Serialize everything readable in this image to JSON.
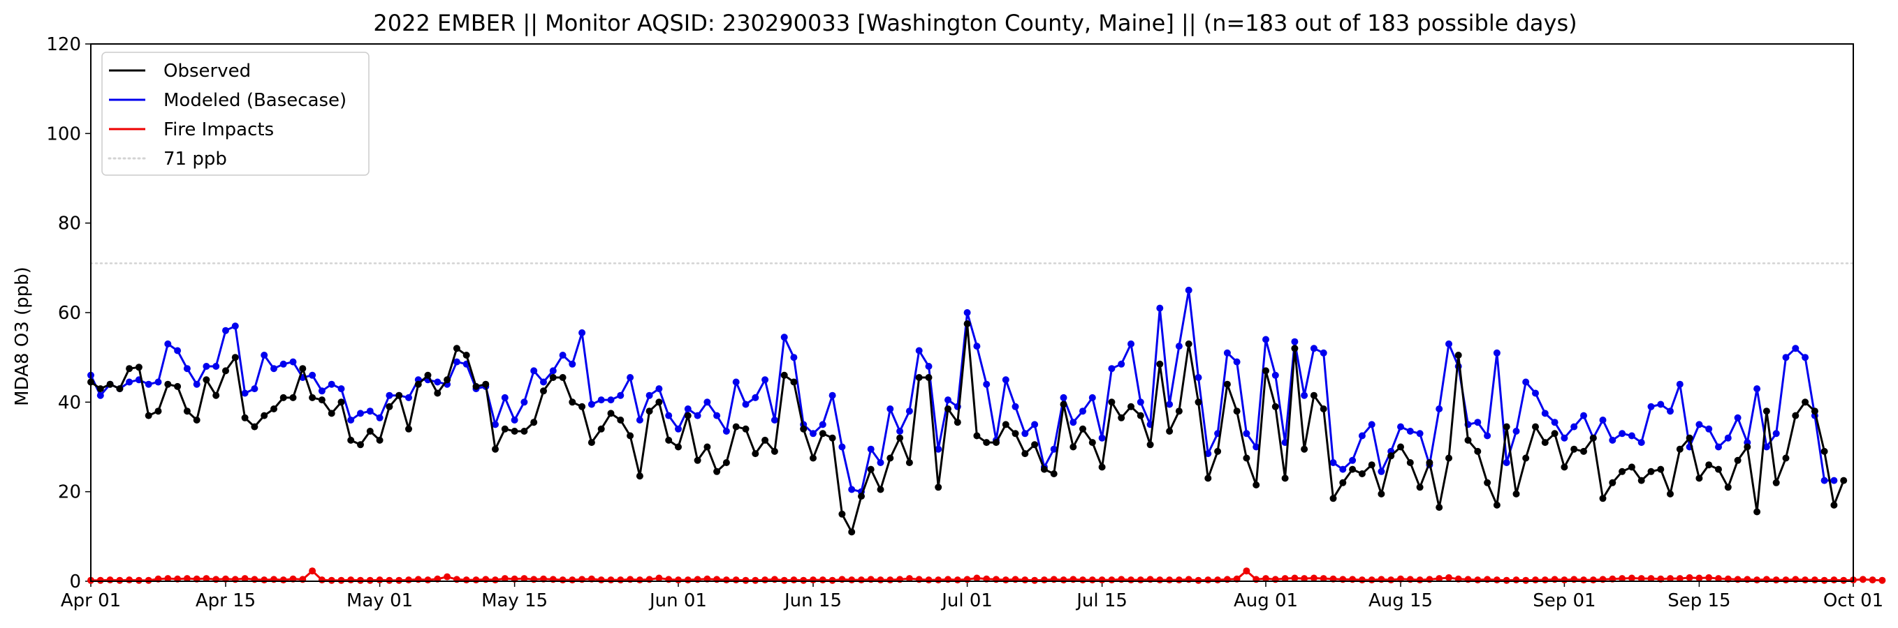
{
  "chart_data": {
    "type": "line",
    "title": "2022 EMBER || Monitor AQSID: 230290033 [Washington County, Maine] || (n=183 out of 183 possible days)",
    "xlabel": "",
    "ylabel": "MDA8 O3 (ppb)",
    "xlim": [
      "2022-04-01",
      "2022-10-01"
    ],
    "ylim": [
      0,
      120
    ],
    "x_ticks": [
      {
        "date": "2022-04-01",
        "label": "Apr 01"
      },
      {
        "date": "2022-04-15",
        "label": "Apr 15"
      },
      {
        "date": "2022-05-01",
        "label": "May 01"
      },
      {
        "date": "2022-05-15",
        "label": "May 15"
      },
      {
        "date": "2022-06-01",
        "label": "Jun 01"
      },
      {
        "date": "2022-06-15",
        "label": "Jun 15"
      },
      {
        "date": "2022-07-01",
        "label": "Jul 01"
      },
      {
        "date": "2022-07-15",
        "label": "Jul 15"
      },
      {
        "date": "2022-08-01",
        "label": "Aug 01"
      },
      {
        "date": "2022-08-15",
        "label": "Aug 15"
      },
      {
        "date": "2022-09-01",
        "label": "Sep 01"
      },
      {
        "date": "2022-09-15",
        "label": "Sep 15"
      },
      {
        "date": "2022-10-01",
        "label": "Oct 01"
      }
    ],
    "y_ticks": [
      0,
      20,
      40,
      60,
      80,
      100,
      120
    ],
    "x_start": "2022-04-01",
    "x_step": "1 day",
    "grid": false,
    "legend": {
      "placement": "top-left"
    },
    "reference_line": {
      "value": 71,
      "label": "71 ppb",
      "color": "#d3d3d3",
      "style": "dotted"
    },
    "series": [
      {
        "name": "Observed",
        "color": "#000000",
        "marker": "circle",
        "values": [
          44.5,
          43,
          44,
          43,
          47.5,
          47.8,
          37,
          38,
          44,
          43.5,
          38,
          36,
          45,
          41.5,
          47,
          50,
          36.5,
          34.5,
          37,
          38.5,
          41,
          41,
          47.5,
          41,
          40.5,
          37.5,
          40,
          31.5,
          30.5,
          33.5,
          31.5,
          39,
          41.5,
          34,
          44,
          46,
          42,
          45,
          52,
          50.5,
          43.5,
          44,
          29.5,
          34,
          33.5,
          33.5,
          35.5,
          42.5,
          45.5,
          45.5,
          40,
          39,
          31,
          34,
          37.5,
          36,
          32.5,
          23.5,
          38,
          40,
          31.5,
          30,
          37,
          27,
          30,
          24.5,
          26.5,
          34.5,
          34,
          28.5,
          31.5,
          29,
          46,
          44.5,
          34,
          27.5,
          33,
          32,
          15,
          11,
          19,
          25,
          20.5,
          27.5,
          32,
          26.5,
          45.5,
          45.5,
          21,
          38.5,
          35.5,
          57.5,
          32.5,
          31,
          31,
          35,
          33,
          28.5,
          30.5,
          25,
          24,
          39.5,
          30,
          34,
          31,
          25.5,
          40,
          36.5,
          39,
          37,
          30.5,
          48.5,
          33.5,
          38,
          53,
          40,
          23,
          29,
          44,
          38,
          27.5,
          21.5,
          47,
          39,
          23,
          52,
          29.5,
          41.5,
          38.5,
          18.5,
          22,
          25,
          24,
          26,
          19.5,
          28,
          30,
          26.5,
          21,
          26.5,
          16.5,
          27.5,
          50.5,
          31.5,
          29,
          22,
          17,
          34.5,
          19.5,
          27.5,
          34.5,
          31,
          33,
          25.5,
          29.5,
          29,
          32,
          18.5,
          22,
          24.5,
          25.5,
          22.5,
          24.5,
          25,
          19.5,
          29.5,
          32,
          23,
          26,
          25,
          21,
          27,
          30,
          15.5,
          38,
          22,
          27.5,
          37,
          40,
          38,
          29,
          17,
          22.5
        ]
      },
      {
        "name": "Modeled (Basecase)",
        "color": "#0000ee",
        "marker": "circle",
        "values": [
          46,
          41.5,
          44,
          43,
          44.5,
          45,
          44,
          44.5,
          53,
          51.5,
          47.5,
          44,
          48,
          48,
          56,
          57,
          42,
          43,
          50.5,
          47.5,
          48.5,
          49,
          45.5,
          46,
          42.5,
          44,
          43,
          36,
          37.5,
          38,
          36.5,
          41.5,
          41.5,
          41,
          45,
          45,
          44.5,
          44,
          49,
          48.5,
          43,
          43.5,
          35,
          41,
          36,
          40,
          47,
          44.5,
          47,
          50.5,
          48.5,
          55.5,
          39.5,
          40.5,
          40.5,
          41.5,
          45.5,
          36,
          41.5,
          43,
          37,
          34,
          38.5,
          37,
          40,
          37,
          33.5,
          44.5,
          39.5,
          41,
          45,
          36,
          54.5,
          50,
          35,
          33,
          35,
          41.5,
          30,
          20.5,
          20,
          29.5,
          26.5,
          38.5,
          33.5,
          38,
          51.5,
          48,
          29.5,
          40.5,
          39,
          60,
          52.5,
          44,
          31.5,
          45,
          39,
          33,
          35,
          25.5,
          29.5,
          41,
          35.5,
          38,
          41,
          32,
          47.5,
          48.5,
          53,
          40,
          35,
          61,
          39.5,
          52.5,
          65,
          45.5,
          28.5,
          33,
          51,
          49,
          33,
          30,
          54,
          46,
          31,
          53.5,
          41.5,
          52,
          51,
          26.5,
          25,
          27,
          32.5,
          35,
          24.5,
          29,
          34.5,
          33.5,
          33,
          26,
          38.5,
          53,
          48,
          35,
          35.5,
          32.5,
          51,
          26.5,
          33.5,
          44.5,
          42,
          37.5,
          35.5,
          32,
          34.5,
          37,
          32,
          36,
          31.5,
          33,
          32.5,
          31,
          39,
          39.5,
          38,
          44,
          30,
          35,
          34,
          30,
          32,
          36.5,
          31,
          43,
          30,
          33,
          50,
          52,
          50,
          37,
          22.5,
          22.5
        ]
      },
      {
        "name": "Fire Impacts",
        "color": "#ee0000",
        "marker": "circle",
        "values": [
          0.2,
          0.2,
          0.3,
          0.2,
          0.3,
          0.2,
          0.2,
          0.5,
          0.6,
          0.5,
          0.6,
          0.5,
          0.6,
          0.4,
          0.5,
          0.4,
          0.6,
          0.4,
          0.3,
          0.4,
          0.3,
          0.5,
          0.4,
          2.3,
          0.3,
          0.2,
          0.2,
          0.3,
          0.2,
          0.2,
          0.3,
          0.2,
          0.2,
          0.3,
          0.4,
          0.3,
          0.5,
          1.0,
          0.4,
          0.3,
          0.3,
          0.4,
          0.3,
          0.6,
          0.5,
          0.6,
          0.4,
          0.5,
          0.4,
          0.3,
          0.3,
          0.4,
          0.5,
          0.3,
          0.3,
          0.3,
          0.4,
          0.3,
          0.4,
          0.7,
          0.4,
          0.3,
          0.3,
          0.4,
          0.5,
          0.4,
          0.3,
          0.3,
          0.2,
          0.2,
          0.3,
          0.4,
          0.2,
          0.3,
          0.2,
          0.3,
          0.3,
          0.2,
          0.4,
          0.3,
          0.3,
          0.4,
          0.3,
          0.3,
          0.4,
          0.6,
          0.4,
          0.3,
          0.3,
          0.4,
          0.3,
          0.4,
          0.7,
          0.5,
          0.4,
          0.3,
          0.4,
          0.3,
          0.2,
          0.3,
          0.4,
          0.3,
          0.4,
          0.3,
          0.3,
          0.3,
          0.3,
          0.4,
          0.3,
          0.3,
          0.4,
          0.3,
          0.3,
          0.3,
          0.4,
          0.2,
          0.3,
          0.3,
          0.4,
          0.5,
          2.3,
          0.4,
          0.6,
          0.4,
          0.6,
          0.7,
          0.6,
          0.7,
          0.6,
          0.5,
          0.4,
          0.4,
          0.3,
          0.3,
          0.4,
          0.3,
          0.5,
          0.4,
          0.3,
          0.4,
          0.6,
          0.8,
          0.5,
          0.4,
          0.3,
          0.4,
          0.3,
          0.2,
          0.3,
          0.2,
          0.3,
          0.3,
          0.4,
          0.3,
          0.4,
          0.3,
          0.3,
          0.4,
          0.5,
          0.6,
          0.7,
          0.6,
          0.6,
          0.5,
          0.6,
          0.6,
          0.8,
          0.7,
          0.8,
          0.6,
          0.5,
          0.4,
          0.4,
          0.3,
          0.4,
          0.3,
          0.3,
          0.4,
          0.3,
          0.3,
          0.2,
          0.3,
          0.2,
          0.3,
          0.4,
          0.3,
          0.2
        ]
      }
    ]
  }
}
